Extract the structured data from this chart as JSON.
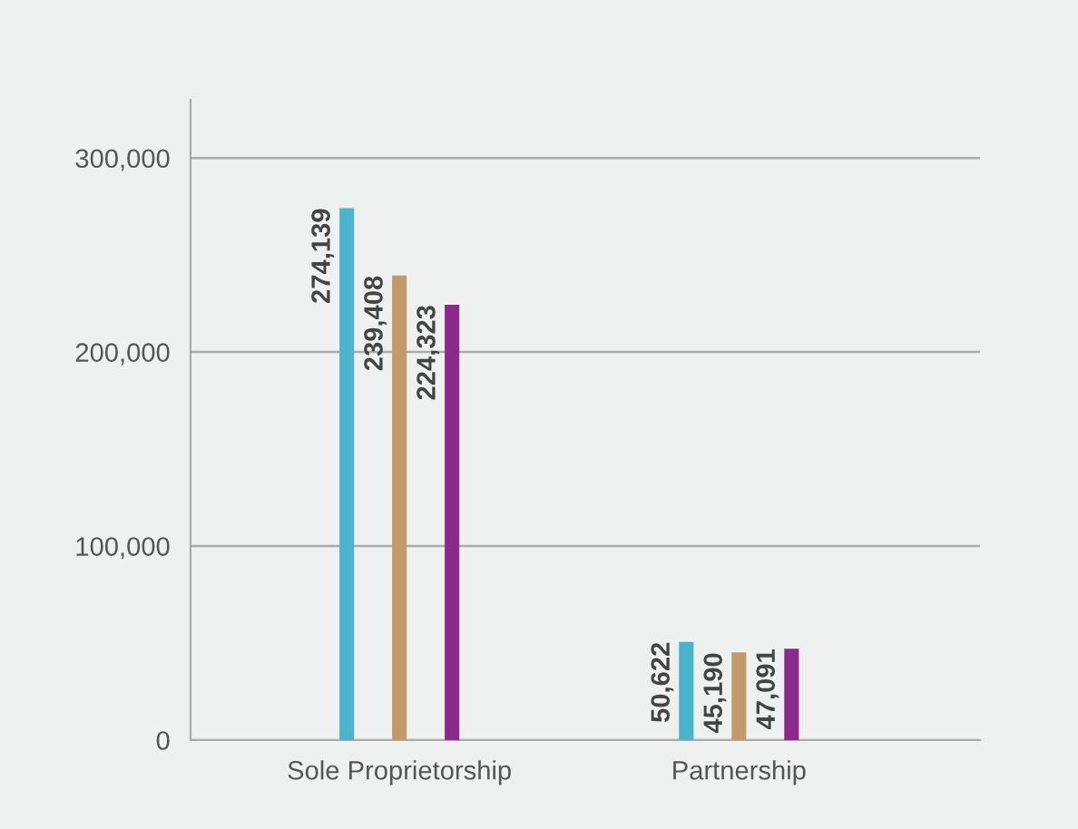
{
  "chart_data": {
    "type": "bar",
    "categories": [
      "Sole Proprietorship",
      "Partnership"
    ],
    "series": [
      {
        "color": "#4bb3cc",
        "values": [
          274139,
          50622
        ],
        "value_labels": [
          "274,139",
          "50,622"
        ]
      },
      {
        "color": "#c49a6c",
        "values": [
          239408,
          45190
        ],
        "value_labels": [
          "239,408",
          "45,190"
        ]
      },
      {
        "color": "#8b2a8c",
        "values": [
          224323,
          47091
        ],
        "value_labels": [
          "224,323",
          "47,091"
        ]
      }
    ],
    "ylim": [
      0,
      330000
    ],
    "yticks": [
      0,
      {
        "value": 100000,
        "label": "100,000"
      },
      {
        "value": 200000,
        "label": "200,000"
      },
      {
        "value": 300000,
        "label": "300,000"
      }
    ],
    "grid": "y",
    "legend": false
  }
}
